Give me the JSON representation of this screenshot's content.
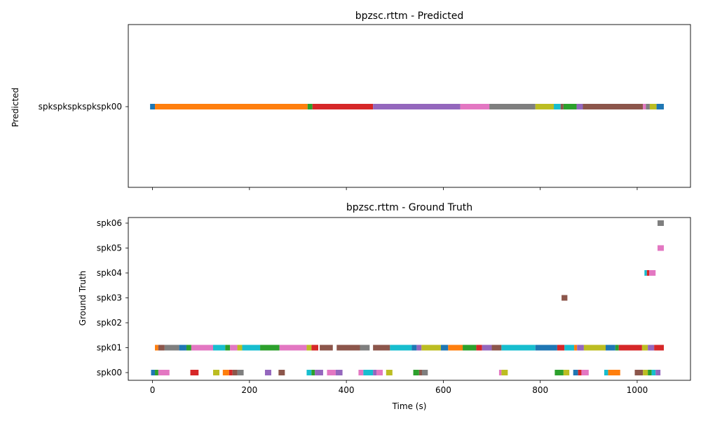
{
  "chart_data": [
    {
      "type": "timeline",
      "title": "bpzsc.rttm - Predicted",
      "ylabel": "Predicted",
      "xlabel": "",
      "xlim": [
        -50,
        1110
      ],
      "xticks": [
        0,
        200,
        400,
        600,
        800,
        1000
      ],
      "show_xtick_labels": false,
      "rows": [
        "spkspkspkspkspk00"
      ],
      "segments": [
        {
          "row": 0,
          "start": -5,
          "end": 5,
          "color": "#1f77b4"
        },
        {
          "row": 0,
          "start": 5,
          "end": 320,
          "color": "#ff7f0e"
        },
        {
          "row": 0,
          "start": 320,
          "end": 330,
          "color": "#2ca02c"
        },
        {
          "row": 0,
          "start": 330,
          "end": 455,
          "color": "#d62728"
        },
        {
          "row": 0,
          "start": 455,
          "end": 635,
          "color": "#9467bd"
        },
        {
          "row": 0,
          "start": 635,
          "end": 695,
          "color": "#e377c2"
        },
        {
          "row": 0,
          "start": 695,
          "end": 790,
          "color": "#7f7f7f"
        },
        {
          "row": 0,
          "start": 790,
          "end": 828,
          "color": "#bcbd22"
        },
        {
          "row": 0,
          "start": 828,
          "end": 842,
          "color": "#17becf"
        },
        {
          "row": 0,
          "start": 842,
          "end": 848,
          "color": "#8c564b"
        },
        {
          "row": 0,
          "start": 848,
          "end": 875,
          "color": "#2ca02c"
        },
        {
          "row": 0,
          "start": 875,
          "end": 888,
          "color": "#9467bd"
        },
        {
          "row": 0,
          "start": 888,
          "end": 1012,
          "color": "#8c564b"
        },
        {
          "row": 0,
          "start": 1012,
          "end": 1018,
          "color": "#e377c2"
        },
        {
          "row": 0,
          "start": 1018,
          "end": 1026,
          "color": "#7f7f7f"
        },
        {
          "row": 0,
          "start": 1026,
          "end": 1040,
          "color": "#bcbd22"
        },
        {
          "row": 0,
          "start": 1040,
          "end": 1055,
          "color": "#1f77b4"
        }
      ]
    },
    {
      "type": "timeline",
      "title": "bpzsc.rttm - Ground Truth",
      "ylabel": "Ground Truth",
      "xlabel": "Time (s)",
      "xlim": [
        -50,
        1110
      ],
      "xticks": [
        0,
        200,
        400,
        600,
        800,
        1000
      ],
      "show_xtick_labels": true,
      "rows": [
        "spk00",
        "spk01",
        "spk02",
        "spk03",
        "spk04",
        "spk05",
        "spk06"
      ],
      "segments": [
        {
          "row": 0,
          "start": -3,
          "end": 5,
          "color": "#1f77b4"
        },
        {
          "row": 0,
          "start": 5,
          "end": 12,
          "color": "#2ca02c"
        },
        {
          "row": 0,
          "start": 12,
          "end": 35,
          "color": "#e377c2"
        },
        {
          "row": 0,
          "start": 78,
          "end": 95,
          "color": "#d62728"
        },
        {
          "row": 0,
          "start": 125,
          "end": 138,
          "color": "#bcbd22"
        },
        {
          "row": 0,
          "start": 145,
          "end": 158,
          "color": "#ff7f0e"
        },
        {
          "row": 0,
          "start": 158,
          "end": 165,
          "color": "#d62728"
        },
        {
          "row": 0,
          "start": 165,
          "end": 175,
          "color": "#8c564b"
        },
        {
          "row": 0,
          "start": 175,
          "end": 188,
          "color": "#7f7f7f"
        },
        {
          "row": 0,
          "start": 232,
          "end": 245,
          "color": "#9467bd"
        },
        {
          "row": 0,
          "start": 260,
          "end": 273,
          "color": "#8c564b"
        },
        {
          "row": 0,
          "start": 318,
          "end": 328,
          "color": "#17becf"
        },
        {
          "row": 0,
          "start": 328,
          "end": 335,
          "color": "#2ca02c"
        },
        {
          "row": 0,
          "start": 335,
          "end": 352,
          "color": "#9467bd"
        },
        {
          "row": 0,
          "start": 360,
          "end": 378,
          "color": "#e377c2"
        },
        {
          "row": 0,
          "start": 378,
          "end": 392,
          "color": "#9467bd"
        },
        {
          "row": 0,
          "start": 425,
          "end": 435,
          "color": "#e377c2"
        },
        {
          "row": 0,
          "start": 435,
          "end": 455,
          "color": "#17becf"
        },
        {
          "row": 0,
          "start": 455,
          "end": 462,
          "color": "#9467bd"
        },
        {
          "row": 0,
          "start": 462,
          "end": 475,
          "color": "#e377c2"
        },
        {
          "row": 0,
          "start": 482,
          "end": 495,
          "color": "#bcbd22"
        },
        {
          "row": 0,
          "start": 538,
          "end": 550,
          "color": "#2ca02c"
        },
        {
          "row": 0,
          "start": 550,
          "end": 556,
          "color": "#8c564b"
        },
        {
          "row": 0,
          "start": 556,
          "end": 568,
          "color": "#7f7f7f"
        },
        {
          "row": 0,
          "start": 715,
          "end": 720,
          "color": "#e377c2"
        },
        {
          "row": 0,
          "start": 720,
          "end": 733,
          "color": "#bcbd22"
        },
        {
          "row": 0,
          "start": 830,
          "end": 848,
          "color": "#2ca02c"
        },
        {
          "row": 0,
          "start": 848,
          "end": 860,
          "color": "#bcbd22"
        },
        {
          "row": 0,
          "start": 868,
          "end": 878,
          "color": "#1f77b4"
        },
        {
          "row": 0,
          "start": 878,
          "end": 885,
          "color": "#d62728"
        },
        {
          "row": 0,
          "start": 885,
          "end": 900,
          "color": "#e377c2"
        },
        {
          "row": 0,
          "start": 932,
          "end": 940,
          "color": "#17becf"
        },
        {
          "row": 0,
          "start": 940,
          "end": 965,
          "color": "#ff7f0e"
        },
        {
          "row": 0,
          "start": 995,
          "end": 1012,
          "color": "#8c564b"
        },
        {
          "row": 0,
          "start": 1012,
          "end": 1022,
          "color": "#bcbd22"
        },
        {
          "row": 0,
          "start": 1022,
          "end": 1030,
          "color": "#2ca02c"
        },
        {
          "row": 0,
          "start": 1030,
          "end": 1038,
          "color": "#17becf"
        },
        {
          "row": 0,
          "start": 1038,
          "end": 1048,
          "color": "#9467bd"
        },
        {
          "row": 1,
          "start": 5,
          "end": 12,
          "color": "#ff7f0e"
        },
        {
          "row": 1,
          "start": 12,
          "end": 25,
          "color": "#8c564b"
        },
        {
          "row": 1,
          "start": 25,
          "end": 55,
          "color": "#7f7f7f"
        },
        {
          "row": 1,
          "start": 55,
          "end": 70,
          "color": "#1f77b4"
        },
        {
          "row": 1,
          "start": 70,
          "end": 80,
          "color": "#2ca02c"
        },
        {
          "row": 1,
          "start": 80,
          "end": 125,
          "color": "#e377c2"
        },
        {
          "row": 1,
          "start": 125,
          "end": 150,
          "color": "#17becf"
        },
        {
          "row": 1,
          "start": 150,
          "end": 160,
          "color": "#2ca02c"
        },
        {
          "row": 1,
          "start": 160,
          "end": 175,
          "color": "#e377c2"
        },
        {
          "row": 1,
          "start": 175,
          "end": 185,
          "color": "#bcbd22"
        },
        {
          "row": 1,
          "start": 185,
          "end": 222,
          "color": "#17becf"
        },
        {
          "row": 1,
          "start": 222,
          "end": 262,
          "color": "#2ca02c"
        },
        {
          "row": 1,
          "start": 262,
          "end": 318,
          "color": "#e377c2"
        },
        {
          "row": 1,
          "start": 318,
          "end": 328,
          "color": "#bcbd22"
        },
        {
          "row": 1,
          "start": 328,
          "end": 342,
          "color": "#d62728"
        },
        {
          "row": 1,
          "start": 345,
          "end": 372,
          "color": "#8c564b"
        },
        {
          "row": 1,
          "start": 380,
          "end": 428,
          "color": "#8c564b"
        },
        {
          "row": 1,
          "start": 428,
          "end": 448,
          "color": "#7f7f7f"
        },
        {
          "row": 1,
          "start": 455,
          "end": 490,
          "color": "#8c564b"
        },
        {
          "row": 1,
          "start": 490,
          "end": 535,
          "color": "#17becf"
        },
        {
          "row": 1,
          "start": 535,
          "end": 545,
          "color": "#1f77b4"
        },
        {
          "row": 1,
          "start": 545,
          "end": 555,
          "color": "#9467bd"
        },
        {
          "row": 1,
          "start": 555,
          "end": 595,
          "color": "#bcbd22"
        },
        {
          "row": 1,
          "start": 595,
          "end": 610,
          "color": "#1f77b4"
        },
        {
          "row": 1,
          "start": 610,
          "end": 640,
          "color": "#ff7f0e"
        },
        {
          "row": 1,
          "start": 640,
          "end": 668,
          "color": "#2ca02c"
        },
        {
          "row": 1,
          "start": 668,
          "end": 680,
          "color": "#d62728"
        },
        {
          "row": 1,
          "start": 680,
          "end": 700,
          "color": "#9467bd"
        },
        {
          "row": 1,
          "start": 700,
          "end": 720,
          "color": "#8c564b"
        },
        {
          "row": 1,
          "start": 720,
          "end": 790,
          "color": "#17becf"
        },
        {
          "row": 1,
          "start": 790,
          "end": 835,
          "color": "#1f77b4"
        },
        {
          "row": 1,
          "start": 835,
          "end": 850,
          "color": "#d62728"
        },
        {
          "row": 1,
          "start": 850,
          "end": 870,
          "color": "#17becf"
        },
        {
          "row": 1,
          "start": 870,
          "end": 876,
          "color": "#ff7f0e"
        },
        {
          "row": 1,
          "start": 876,
          "end": 890,
          "color": "#9467bd"
        },
        {
          "row": 1,
          "start": 890,
          "end": 935,
          "color": "#bcbd22"
        },
        {
          "row": 1,
          "start": 935,
          "end": 955,
          "color": "#1f77b4"
        },
        {
          "row": 1,
          "start": 955,
          "end": 962,
          "color": "#2ca02c"
        },
        {
          "row": 1,
          "start": 962,
          "end": 1010,
          "color": "#d62728"
        },
        {
          "row": 1,
          "start": 1010,
          "end": 1022,
          "color": "#bcbd22"
        },
        {
          "row": 1,
          "start": 1022,
          "end": 1035,
          "color": "#9467bd"
        },
        {
          "row": 1,
          "start": 1035,
          "end": 1055,
          "color": "#d62728"
        },
        {
          "row": 3,
          "start": 844,
          "end": 856,
          "color": "#8c564b"
        },
        {
          "row": 4,
          "start": 1015,
          "end": 1020,
          "color": "#17becf"
        },
        {
          "row": 4,
          "start": 1020,
          "end": 1025,
          "color": "#d62728"
        },
        {
          "row": 4,
          "start": 1025,
          "end": 1038,
          "color": "#e377c2"
        },
        {
          "row": 5,
          "start": 1042,
          "end": 1055,
          "color": "#e377c2"
        },
        {
          "row": 6,
          "start": 1042,
          "end": 1055,
          "color": "#7f7f7f"
        }
      ]
    }
  ]
}
